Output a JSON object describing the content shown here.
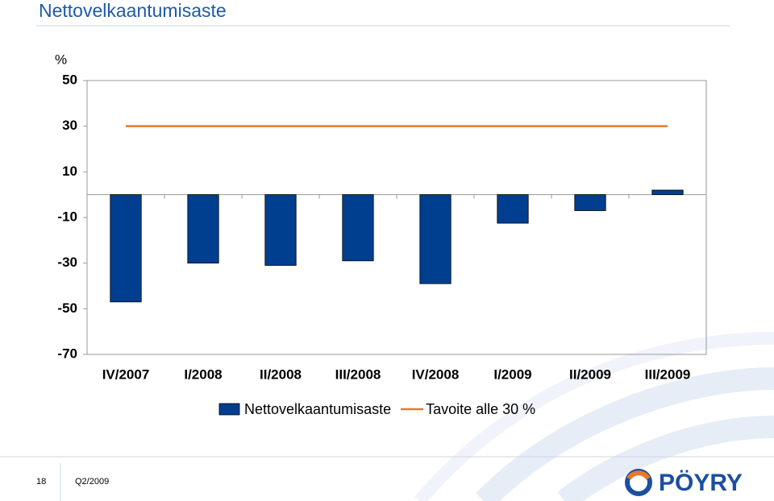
{
  "chart_data": {
    "type": "bar",
    "title": "Nettovelkaantumisaste",
    "y_label": "%",
    "categories": [
      "IV/2007",
      "I/2008",
      "II/2008",
      "III/2008",
      "IV/2008",
      "I/2009",
      "II/2009",
      "III/2009"
    ],
    "series": [
      {
        "name": "Nettovelkaantumisaste",
        "type": "bar",
        "color": "#003e8f",
        "values": [
          -47,
          -30,
          -31,
          -29,
          -39,
          -12.5,
          -7,
          2
        ]
      },
      {
        "name": "Tavoite alle 30 %",
        "type": "line",
        "color": "#e8782a",
        "values": [
          30,
          30,
          30,
          30,
          30,
          30,
          30,
          30
        ]
      }
    ],
    "ylim": [
      -70,
      50
    ],
    "yticks": [
      -70,
      -50,
      -30,
      -10,
      10,
      30,
      50
    ],
    "grid": false,
    "legend": "bottom"
  },
  "footer": {
    "page": "18",
    "period": "Q2/2009",
    "logo": "PÖYRY"
  }
}
